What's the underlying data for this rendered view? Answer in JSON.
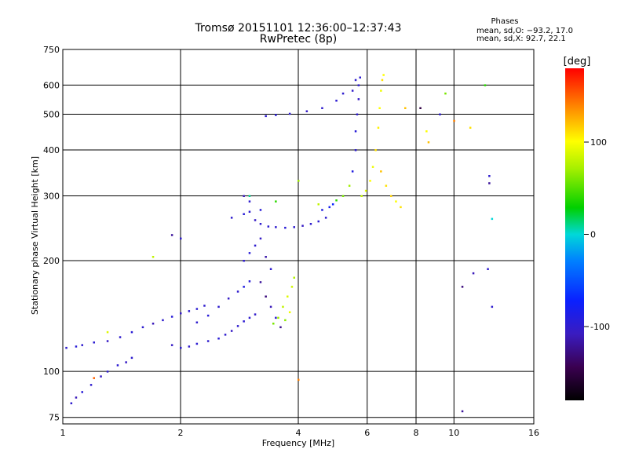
{
  "chart_data": {
    "type": "scatter",
    "title": "Tromsø 20151101 12:36:00–12:37:43",
    "subtitle": "RwPretec (8p)",
    "stats": {
      "heading": "Phases",
      "o_line": "mean, sd,O: −93.2, 17.0",
      "x_line": "mean, sd,X:  92.7, 22.1"
    },
    "xlabel": "Frequency [MHz]",
    "ylabel": "Stationary phase Virtual Height [km]",
    "x_scale": "log",
    "y_scale": "log",
    "xlim": [
      1,
      16
    ],
    "ylim": [
      72,
      750
    ],
    "x_ticks": [
      1,
      2,
      4,
      6,
      8,
      10,
      16
    ],
    "x_tick_labels": [
      "1",
      "2",
      "4",
      "6",
      "8",
      "10",
      "16"
    ],
    "y_ticks": [
      75,
      100,
      200,
      300,
      400,
      500,
      600,
      750
    ],
    "y_tick_labels": [
      "75",
      "100",
      "200",
      "300",
      "400",
      "500",
      "600",
      "750"
    ],
    "grid": true,
    "colorbar": {
      "label": "[deg]",
      "range": [
        -180,
        180
      ],
      "ticks": [
        100,
        0,
        -100
      ],
      "tick_labels": [
        "100",
        "0",
        "-100"
      ]
    },
    "series": [
      {
        "values": [
          [
            1.05,
            82,
            -100
          ],
          [
            1.08,
            85,
            -110
          ],
          [
            1.12,
            88,
            -95
          ],
          [
            1.18,
            92,
            -100
          ],
          [
            1.25,
            97,
            -105
          ],
          [
            1.3,
            100,
            -100
          ],
          [
            1.38,
            104,
            -98
          ],
          [
            1.45,
            106,
            -105
          ],
          [
            1.5,
            109,
            -100
          ],
          [
            1.02,
            116,
            -100
          ],
          [
            1.08,
            117,
            -95
          ],
          [
            1.12,
            118,
            -100
          ],
          [
            1.2,
            120,
            -98
          ],
          [
            1.3,
            121,
            -105
          ],
          [
            1.4,
            124,
            -100
          ],
          [
            1.5,
            128,
            -96
          ],
          [
            1.6,
            132,
            -100
          ],
          [
            1.7,
            135,
            -110
          ],
          [
            1.8,
            138,
            -100
          ],
          [
            1.9,
            141,
            -95
          ],
          [
            2.0,
            144,
            -105
          ],
          [
            2.1,
            146,
            -100
          ],
          [
            2.2,
            148,
            -98
          ],
          [
            2.3,
            151,
            -100
          ],
          [
            1.9,
            118,
            -105
          ],
          [
            2.0,
            116,
            -100
          ],
          [
            2.1,
            117,
            -102
          ],
          [
            2.2,
            119,
            -98
          ],
          [
            2.35,
            121,
            -100
          ],
          [
            2.5,
            123,
            -96
          ],
          [
            2.6,
            126,
            -100
          ],
          [
            2.7,
            129,
            -105
          ],
          [
            2.8,
            133,
            -100
          ],
          [
            2.9,
            137,
            -98
          ],
          [
            3.0,
            140,
            -100
          ],
          [
            3.1,
            143,
            -102
          ],
          [
            2.2,
            136,
            -100
          ],
          [
            2.35,
            142,
            -95
          ],
          [
            2.5,
            150,
            -100
          ],
          [
            2.65,
            158,
            -105
          ],
          [
            2.8,
            165,
            -100
          ],
          [
            2.9,
            170,
            -90
          ],
          [
            3.0,
            176,
            -95
          ],
          [
            2.9,
            200,
            -100
          ],
          [
            3.0,
            210,
            -95
          ],
          [
            3.1,
            220,
            -100
          ],
          [
            3.2,
            230,
            -105
          ],
          [
            3.3,
            205,
            -115
          ],
          [
            3.4,
            190,
            -100
          ],
          [
            3.2,
            175,
            -120
          ],
          [
            3.3,
            160,
            -130
          ],
          [
            3.4,
            150,
            -110
          ],
          [
            3.5,
            140,
            -100
          ],
          [
            3.6,
            132,
            -125
          ],
          [
            3.45,
            135,
            60
          ],
          [
            3.55,
            140,
            70
          ],
          [
            3.65,
            150,
            80
          ],
          [
            3.75,
            160,
            90
          ],
          [
            3.85,
            170,
            85
          ],
          [
            3.9,
            180,
            75
          ],
          [
            3.8,
            145,
            95
          ],
          [
            3.7,
            138,
            65
          ],
          [
            2.7,
            262,
            -100
          ],
          [
            2.9,
            268,
            -95
          ],
          [
            3.0,
            272,
            -100
          ],
          [
            3.1,
            258,
            -105
          ],
          [
            3.2,
            252,
            -100
          ],
          [
            3.35,
            248,
            -98
          ],
          [
            3.5,
            247,
            -100
          ],
          [
            3.7,
            246,
            -96
          ],
          [
            3.9,
            247,
            -100
          ],
          [
            4.1,
            249,
            -105
          ],
          [
            4.3,
            252,
            -100
          ],
          [
            4.5,
            256,
            -98
          ],
          [
            4.7,
            262,
            -100
          ],
          [
            2.9,
            300,
            -110
          ],
          [
            3.0,
            290,
            -100
          ],
          [
            3.2,
            275,
            -95
          ],
          [
            4.6,
            275,
            -90
          ],
          [
            4.8,
            280,
            -80
          ],
          [
            4.9,
            285,
            -70
          ],
          [
            5.0,
            292,
            40
          ],
          [
            5.2,
            300,
            60
          ],
          [
            5.4,
            320,
            70
          ],
          [
            5.5,
            350,
            -90
          ],
          [
            5.6,
            400,
            -100
          ],
          [
            5.6,
            450,
            -95
          ],
          [
            5.65,
            500,
            -100
          ],
          [
            5.7,
            550,
            -105
          ],
          [
            5.7,
            600,
            -100
          ],
          [
            5.75,
            630,
            -98
          ],
          [
            5.6,
            620,
            -100
          ],
          [
            5.5,
            580,
            -102
          ],
          [
            3.3,
            495,
            -100
          ],
          [
            3.5,
            498,
            -95
          ],
          [
            3.8,
            502,
            -100
          ],
          [
            4.2,
            510,
            -105
          ],
          [
            4.6,
            520,
            -100
          ],
          [
            5.0,
            545,
            -98
          ],
          [
            5.2,
            570,
            -100
          ],
          [
            5.8,
            300,
            80
          ],
          [
            5.95,
            310,
            90
          ],
          [
            6.1,
            330,
            100
          ],
          [
            6.2,
            360,
            95
          ],
          [
            6.3,
            400,
            110
          ],
          [
            6.4,
            460,
            105
          ],
          [
            6.45,
            520,
            100
          ],
          [
            6.5,
            580,
            95
          ],
          [
            6.55,
            620,
            110
          ],
          [
            6.6,
            640,
            100
          ],
          [
            6.5,
            350,
            120
          ],
          [
            6.7,
            320,
            110
          ],
          [
            6.9,
            300,
            115
          ],
          [
            7.1,
            290,
            100
          ],
          [
            7.3,
            280,
            110
          ],
          [
            3.0,
            300,
            10
          ],
          [
            3.5,
            290,
            40
          ],
          [
            4.0,
            330,
            70
          ],
          [
            4.5,
            285,
            80
          ],
          [
            4.0,
            95,
            140
          ],
          [
            10.5,
            78,
            -120
          ],
          [
            9.5,
            570,
            60
          ],
          [
            8.5,
            450,
            100
          ],
          [
            7.5,
            520,
            120
          ],
          [
            11.2,
            185,
            -110
          ],
          [
            12.2,
            190,
            -100
          ],
          [
            12.5,
            260,
            0
          ],
          [
            12.3,
            325,
            -120
          ],
          [
            12.3,
            340,
            -100
          ],
          [
            12.0,
            600,
            40
          ],
          [
            11.0,
            460,
            110
          ],
          [
            10.0,
            480,
            140
          ],
          [
            9.2,
            500,
            -100
          ],
          [
            8.6,
            420,
            120
          ],
          [
            8.2,
            520,
            -150
          ],
          [
            10.5,
            170,
            -130
          ],
          [
            12.5,
            150,
            -100
          ],
          [
            1.9,
            235,
            -120
          ],
          [
            2.0,
            230,
            -100
          ],
          [
            1.7,
            205,
            80
          ],
          [
            1.3,
            128,
            90
          ],
          [
            1.2,
            96,
            150
          ]
        ]
      }
    ]
  }
}
